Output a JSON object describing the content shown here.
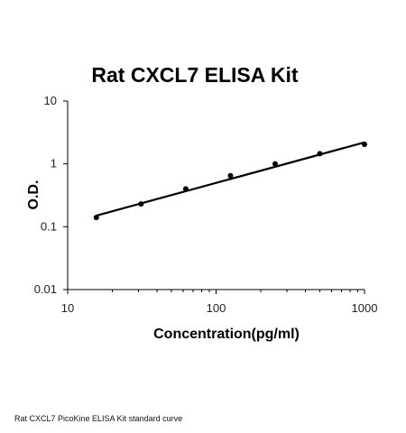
{
  "caption": "Rat CXCL7 PicoKine ELISA Kit standard curve",
  "chart_data": {
    "type": "scatter",
    "title": "Rat CXCL7 ELISA Kit",
    "xlabel": "Concentration(pg/ml)",
    "ylabel": "O.D.",
    "x_scale": "log",
    "y_scale": "log",
    "xlim": [
      10,
      1000
    ],
    "ylim": [
      0.01,
      10
    ],
    "x_ticks": [
      "10",
      "100",
      "1000"
    ],
    "y_ticks": [
      "0.01",
      "0.1",
      "1",
      "10"
    ],
    "grid": false,
    "legend": "none",
    "series": [
      {
        "x": [
          15.6,
          31.2,
          62.5,
          125,
          250,
          500,
          1000
        ],
        "y": [
          0.14,
          0.23,
          0.4,
          0.65,
          1.0,
          1.45,
          2.05
        ]
      }
    ],
    "trendline": {
      "x": [
        15.6,
        1000
      ],
      "y": [
        0.15,
        2.2
      ]
    },
    "colors": {
      "marker": "#000000",
      "line": "#000000",
      "axis": "#000000"
    }
  }
}
